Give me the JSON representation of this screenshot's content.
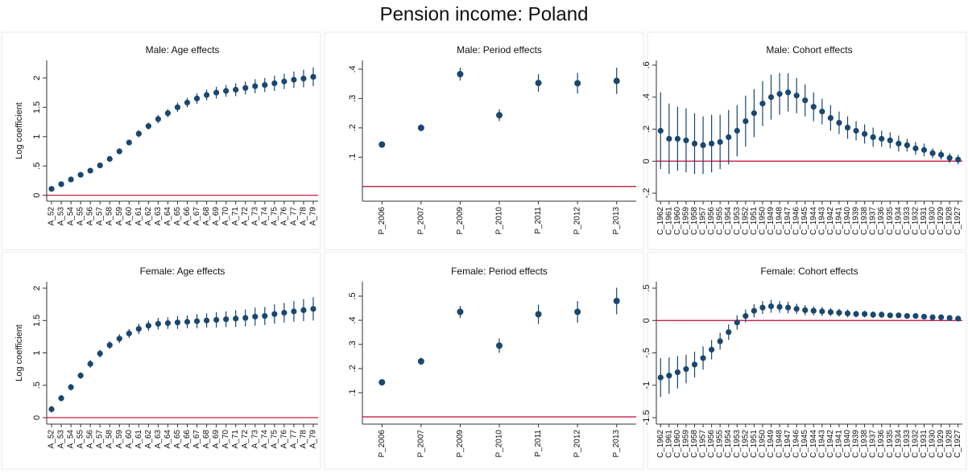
{
  "title": "Pension income: Poland",
  "chart_data": [
    {
      "type": "errorbar",
      "title": "Male: Age effects",
      "ylabel": "Log coefficient",
      "color": "#1a476f",
      "refline": 0,
      "refline_color": "#c10534",
      "categories": [
        "A_52",
        "A_53",
        "A_54",
        "A_55",
        "A_56",
        "A_57",
        "A_58",
        "A_59",
        "A_60",
        "A_61",
        "A_62",
        "A_63",
        "A_64",
        "A_65",
        "A_66",
        "A_67",
        "A_68",
        "A_69",
        "A_70",
        "A_71",
        "A_72",
        "A_73",
        "A_74",
        "A_75",
        "A_76",
        "A_77",
        "A_78",
        "A_79"
      ],
      "values": [
        0.11,
        0.19,
        0.27,
        0.35,
        0.42,
        0.51,
        0.62,
        0.75,
        0.9,
        1.05,
        1.18,
        1.3,
        1.4,
        1.5,
        1.58,
        1.65,
        1.71,
        1.75,
        1.78,
        1.8,
        1.83,
        1.86,
        1.88,
        1.91,
        1.94,
        1.97,
        1.99,
        2.02
      ],
      "errors": [
        0.02,
        0.02,
        0.03,
        0.03,
        0.03,
        0.04,
        0.04,
        0.05,
        0.05,
        0.06,
        0.06,
        0.07,
        0.07,
        0.08,
        0.08,
        0.09,
        0.09,
        0.1,
        0.1,
        0.11,
        0.11,
        0.12,
        0.12,
        0.13,
        0.13,
        0.14,
        0.15,
        0.16
      ],
      "ylim": [
        -0.1,
        2.3
      ],
      "yticks": [
        0,
        {
          "value": 0.5,
          "label": ".5"
        },
        1,
        1.5,
        2
      ]
    },
    {
      "type": "errorbar",
      "title": "Male: Period effects",
      "color": "#1a476f",
      "refline": 0,
      "refline_color": "#c10534",
      "categories": [
        "P_2006",
        "P_2007",
        "P_2009",
        "P_2010",
        "P_2011",
        "P_2012",
        "P_2013"
      ],
      "values": [
        0.143,
        0.2,
        0.383,
        0.243,
        0.353,
        0.352,
        0.36
      ],
      "errors": [
        0.01,
        0.012,
        0.022,
        0.02,
        0.03,
        0.035,
        0.045
      ],
      "ylim": [
        -0.05,
        0.43
      ],
      "yticks": [
        {
          "value": 0.1,
          "label": ".1"
        },
        {
          "value": 0.2,
          "label": ".2"
        },
        {
          "value": 0.3,
          "label": ".3"
        },
        {
          "value": 0.4,
          "label": ".4"
        }
      ]
    },
    {
      "type": "errorbar",
      "title": "Male: Cohort effects",
      "color": "#1a476f",
      "refline": 0,
      "refline_color": "#c10534",
      "categories": [
        "C_1962",
        "C_1961",
        "C_1960",
        "C_1959",
        "C_1958",
        "C_1957",
        "C_1956",
        "C_1955",
        "C_1954",
        "C_1953",
        "C_1952",
        "C_1951",
        "C_1950",
        "C_1949",
        "C_1948",
        "C_1947",
        "C_1946",
        "C_1945",
        "C_1944",
        "C_1943",
        "C_1942",
        "C_1941",
        "C_1940",
        "C_1939",
        "C_1938",
        "C_1937",
        "C_1936",
        "C_1935",
        "C_1934",
        "C_1933",
        "C_1932",
        "C_1931",
        "C_1930",
        "C_1929",
        "C_1928",
        "C_1927"
      ],
      "values": [
        0.19,
        0.14,
        0.14,
        0.13,
        0.11,
        0.1,
        0.11,
        0.12,
        0.15,
        0.19,
        0.25,
        0.3,
        0.36,
        0.4,
        0.42,
        0.43,
        0.41,
        0.38,
        0.34,
        0.31,
        0.27,
        0.24,
        0.21,
        0.19,
        0.17,
        0.15,
        0.14,
        0.13,
        0.11,
        0.1,
        0.08,
        0.07,
        0.05,
        0.04,
        0.02,
        0.01
      ],
      "errors": [
        0.24,
        0.22,
        0.2,
        0.2,
        0.19,
        0.18,
        0.18,
        0.17,
        0.17,
        0.16,
        0.16,
        0.15,
        0.14,
        0.14,
        0.13,
        0.12,
        0.11,
        0.1,
        0.09,
        0.08,
        0.08,
        0.07,
        0.07,
        0.06,
        0.06,
        0.06,
        0.05,
        0.05,
        0.05,
        0.04,
        0.04,
        0.04,
        0.03,
        0.03,
        0.03,
        0.03
      ],
      "ylim": [
        -0.25,
        0.63
      ],
      "yticks": [
        {
          "value": -0.2,
          "label": "-.2"
        },
        0,
        {
          "value": 0.2,
          "label": ".2"
        },
        {
          "value": 0.4,
          "label": ".4"
        },
        {
          "value": 0.6,
          "label": ".6"
        }
      ]
    },
    {
      "type": "errorbar",
      "title": "Female: Age effects",
      "ylabel": "Log coefficient",
      "color": "#1a476f",
      "refline": 0,
      "refline_color": "#c10534",
      "categories": [
        "A_52",
        "A_53",
        "A_54",
        "A_55",
        "A_56",
        "A_57",
        "A_58",
        "A_59",
        "A_60",
        "A_61",
        "A_62",
        "A_63",
        "A_64",
        "A_65",
        "A_66",
        "A_67",
        "A_68",
        "A_69",
        "A_70",
        "A_71",
        "A_72",
        "A_73",
        "A_74",
        "A_75",
        "A_76",
        "A_77",
        "A_78",
        "A_79"
      ],
      "values": [
        0.13,
        0.3,
        0.47,
        0.65,
        0.83,
        0.99,
        1.12,
        1.22,
        1.3,
        1.37,
        1.42,
        1.45,
        1.46,
        1.47,
        1.48,
        1.49,
        1.5,
        1.51,
        1.52,
        1.53,
        1.54,
        1.56,
        1.57,
        1.6,
        1.62,
        1.64,
        1.66,
        1.68
      ],
      "errors": [
        0.05,
        0.05,
        0.05,
        0.05,
        0.06,
        0.06,
        0.06,
        0.07,
        0.07,
        0.08,
        0.08,
        0.09,
        0.09,
        0.1,
        0.1,
        0.11,
        0.11,
        0.12,
        0.12,
        0.13,
        0.13,
        0.14,
        0.14,
        0.15,
        0.15,
        0.16,
        0.17,
        0.18
      ],
      "ylim": [
        -0.1,
        2.1
      ],
      "yticks": [
        0,
        {
          "value": 0.5,
          "label": ".5"
        },
        1,
        1.5,
        2
      ]
    },
    {
      "type": "errorbar",
      "title": "Female: Period effects",
      "color": "#1a476f",
      "refline": 0,
      "refline_color": "#c10534",
      "categories": [
        "P_2006",
        "P_2007",
        "P_2009",
        "P_2010",
        "P_2011",
        "P_2012",
        "P_2013"
      ],
      "values": [
        0.143,
        0.23,
        0.435,
        0.295,
        0.425,
        0.435,
        0.48
      ],
      "errors": [
        0.01,
        0.015,
        0.025,
        0.03,
        0.04,
        0.045,
        0.055
      ],
      "ylim": [
        -0.03,
        0.56
      ],
      "yticks": [
        {
          "value": 0.1,
          "label": ".1"
        },
        {
          "value": 0.2,
          "label": ".2"
        },
        {
          "value": 0.3,
          "label": ".3"
        },
        {
          "value": 0.4,
          "label": ".4"
        },
        {
          "value": 0.5,
          "label": ".5"
        }
      ]
    },
    {
      "type": "errorbar",
      "title": "Female: Cohort effects",
      "color": "#1a476f",
      "refline": 0,
      "refline_color": "#c10534",
      "categories": [
        "C_1962",
        "C_1961",
        "C_1960",
        "C_1959",
        "C_1958",
        "C_1957",
        "C_1956",
        "C_1955",
        "C_1954",
        "C_1953",
        "C_1952",
        "C_1951",
        "C_1950",
        "C_1949",
        "C_1948",
        "C_1947",
        "C_1946",
        "C_1945",
        "C_1944",
        "C_1943",
        "C_1942",
        "C_1941",
        "C_1940",
        "C_1939",
        "C_1938",
        "C_1937",
        "C_1936",
        "C_1935",
        "C_1934",
        "C_1933",
        "C_1932",
        "C_1931",
        "C_1930",
        "C_1929",
        "C_1928",
        "C_1927"
      ],
      "values": [
        -0.88,
        -0.85,
        -0.8,
        -0.75,
        -0.68,
        -0.58,
        -0.45,
        -0.32,
        -0.18,
        -0.03,
        0.07,
        0.15,
        0.2,
        0.22,
        0.21,
        0.2,
        0.18,
        0.16,
        0.15,
        0.14,
        0.13,
        0.12,
        0.11,
        0.1,
        0.1,
        0.09,
        0.09,
        0.08,
        0.08,
        0.07,
        0.07,
        0.06,
        0.05,
        0.05,
        0.04,
        0.03
      ],
      "errors": [
        0.3,
        0.28,
        0.25,
        0.22,
        0.2,
        0.18,
        0.15,
        0.13,
        0.12,
        0.11,
        0.1,
        0.1,
        0.1,
        0.1,
        0.09,
        0.09,
        0.08,
        0.08,
        0.07,
        0.07,
        0.06,
        0.06,
        0.06,
        0.05,
        0.05,
        0.05,
        0.05,
        0.04,
        0.04,
        0.04,
        0.04,
        0.04,
        0.03,
        0.03,
        0.03,
        0.03
      ],
      "ylim": [
        -1.6,
        0.6
      ],
      "yticks": [
        {
          "value": -1.5,
          "label": "-1.5"
        },
        -1,
        {
          "value": -0.5,
          "label": "-.5"
        },
        0,
        {
          "value": 0.5,
          "label": ".5"
        }
      ]
    }
  ]
}
